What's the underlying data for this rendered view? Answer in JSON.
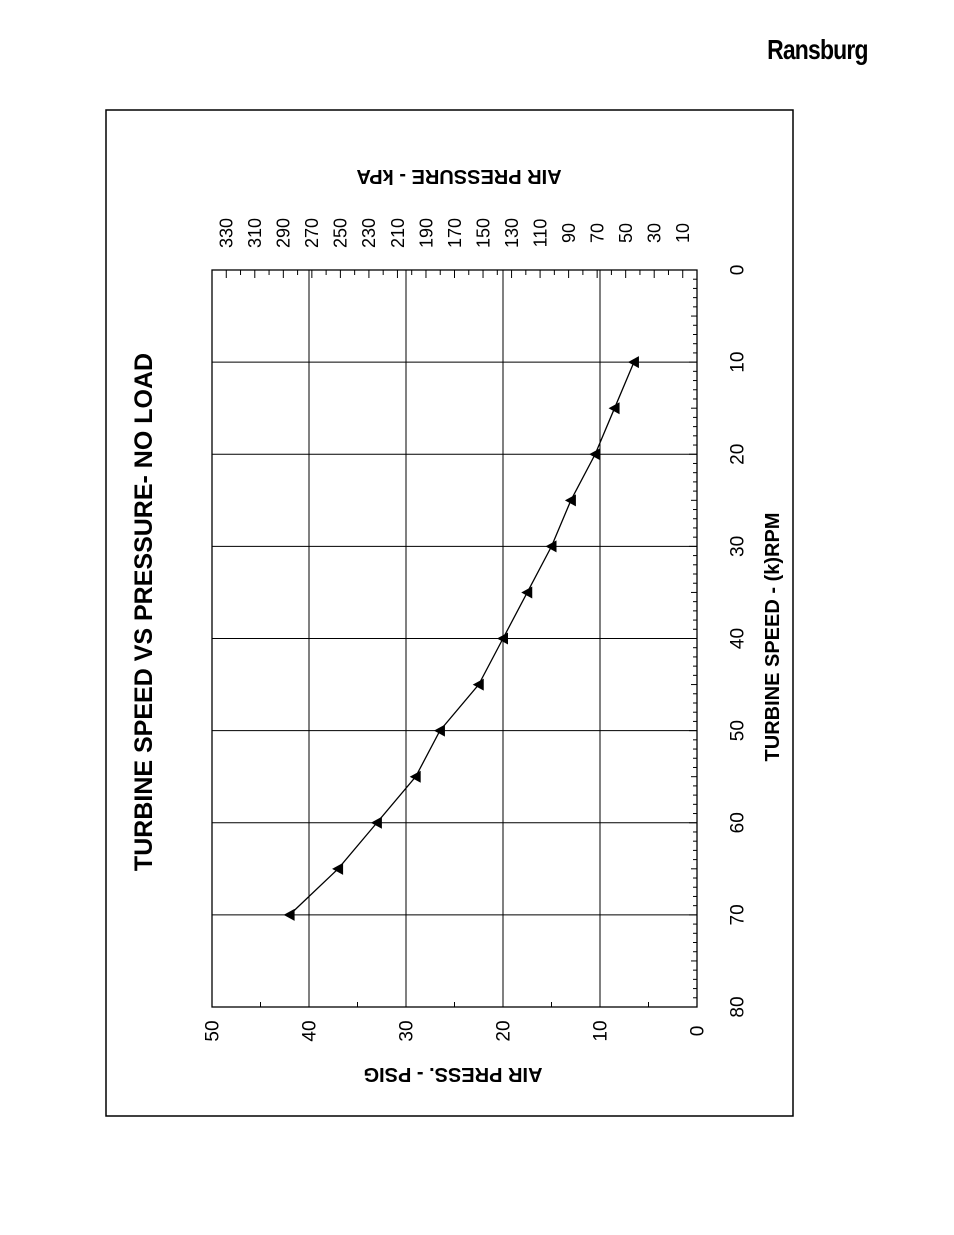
{
  "header": {
    "brand": "Ransburg"
  },
  "chart_data": {
    "type": "line",
    "title": "TURBINE SPEED VS PRESSURE- NO LOAD",
    "xlabel": "TURBINE SPEED - (k)RPM",
    "ylabel": "AIR PRESS. - PSIG",
    "y2label": "AIR PRESSURE - kPA",
    "xlim": [
      0,
      80
    ],
    "ylim": [
      0,
      50
    ],
    "y2lim": [
      0,
      340
    ],
    "xticks": [
      0,
      10,
      20,
      30,
      40,
      50,
      60,
      70,
      80
    ],
    "yticks": [
      0,
      10,
      20,
      30,
      40,
      50
    ],
    "y2ticks": [
      10,
      30,
      50,
      70,
      90,
      110,
      130,
      150,
      170,
      190,
      210,
      230,
      250,
      270,
      290,
      310,
      330
    ],
    "grid": true,
    "orientation": "rotated-90-counterclockwise",
    "series": [
      {
        "x": [
          10,
          15,
          20,
          25,
          30,
          35,
          40,
          45,
          50,
          55,
          60,
          65,
          70
        ],
        "y": [
          6.5,
          8.5,
          10.5,
          13,
          15,
          17.5,
          20,
          22.5,
          26.5,
          29,
          33,
          37,
          42
        ],
        "marker": "triangle"
      }
    ]
  }
}
